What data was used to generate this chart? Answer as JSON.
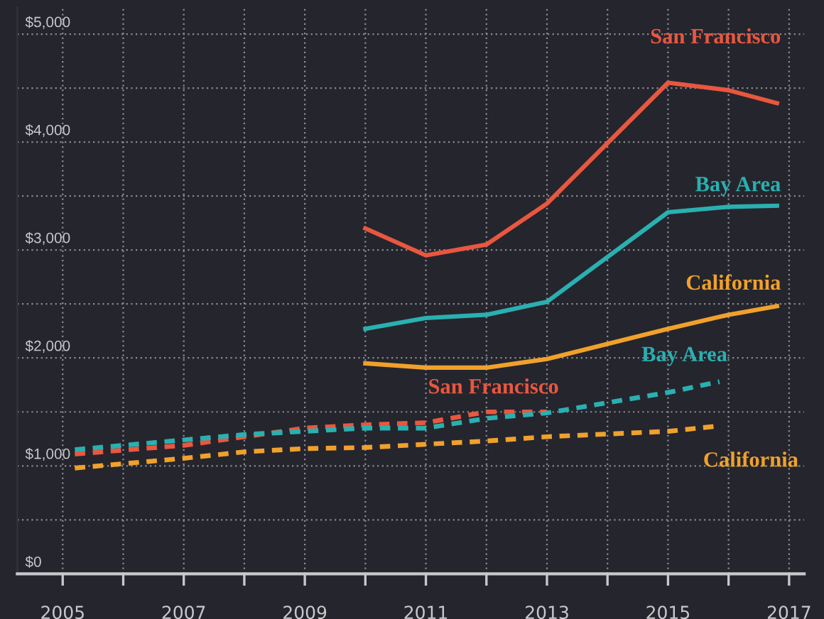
{
  "chart_data": {
    "type": "line",
    "xlim": [
      2004.25,
      2017.25
    ],
    "ylim": [
      0,
      5250
    ],
    "xticks": [
      2005,
      {
        "value": 2006,
        "label": null
      },
      2007,
      {
        "value": 2008,
        "label": null
      },
      2009,
      {
        "value": 2010,
        "label": null
      },
      2011,
      {
        "value": 2012,
        "label": null
      },
      2013,
      {
        "value": 2014,
        "label": null
      },
      2015,
      {
        "value": 2016,
        "label": null
      },
      2017
    ],
    "yticks": [
      {
        "value": 0,
        "label": "$0"
      },
      {
        "value": 500,
        "label": null
      },
      {
        "value": 1000,
        "label": "$1,000"
      },
      {
        "value": 1500,
        "label": null
      },
      {
        "value": 2000,
        "label": "$2,000"
      },
      {
        "value": 2500,
        "label": null
      },
      {
        "value": 3000,
        "label": "$3,000"
      },
      {
        "value": 3500,
        "label": null
      },
      {
        "value": 4000,
        "label": "$4,000"
      },
      {
        "value": 4500,
        "label": null
      },
      {
        "value": 5000,
        "label": "$5,000"
      }
    ],
    "grid": true,
    "legend": false,
    "series": [
      {
        "name": "San Francisco",
        "color": "#e8573f",
        "line_style": "solid",
        "x": [
          2010,
          2011,
          2012,
          2013,
          2015,
          2016,
          2016.8
        ],
        "values": [
          3200,
          2950,
          3050,
          3430,
          4550,
          4480,
          4360
        ]
      },
      {
        "name": "Bay Area",
        "color": "#2ab0b0",
        "line_style": "solid",
        "x": [
          2010,
          2011,
          2012,
          2013,
          2015,
          2016,
          2016.8
        ],
        "values": [
          2270,
          2370,
          2400,
          2520,
          3350,
          3400,
          3410
        ]
      },
      {
        "name": "California",
        "color": "#f0a12c",
        "line_style": "solid",
        "x": [
          2010,
          2011,
          2012,
          2013,
          2015,
          2016,
          2016.8
        ],
        "values": [
          1950,
          1910,
          1910,
          1990,
          2270,
          2400,
          2480
        ]
      },
      {
        "name": "San Francisco",
        "color": "#e8573f",
        "line_style": "dashed",
        "x": [
          2005.2,
          2007,
          2008,
          2009,
          2010,
          2011,
          2012,
          2013
        ],
        "values": [
          1110,
          1190,
          1270,
          1350,
          1380,
          1400,
          1500,
          1500
        ]
      },
      {
        "name": "Bay Area",
        "color": "#2ab0b0",
        "line_style": "dashed",
        "x": [
          2005.2,
          2007,
          2008,
          2009,
          2010,
          2011,
          2012,
          2013,
          2015,
          2015.85
        ],
        "values": [
          1150,
          1240,
          1290,
          1320,
          1350,
          1350,
          1440,
          1490,
          1680,
          1780
        ]
      },
      {
        "name": "California",
        "color": "#f0a12c",
        "line_style": "dashed",
        "x": [
          2005.2,
          2006,
          2007,
          2008,
          2009,
          2010,
          2011,
          2012,
          2013,
          2015,
          2015.85
        ],
        "values": [
          980,
          1020,
          1070,
          1130,
          1160,
          1170,
          1200,
          1230,
          1270,
          1320,
          1370
        ]
      }
    ]
  }
}
